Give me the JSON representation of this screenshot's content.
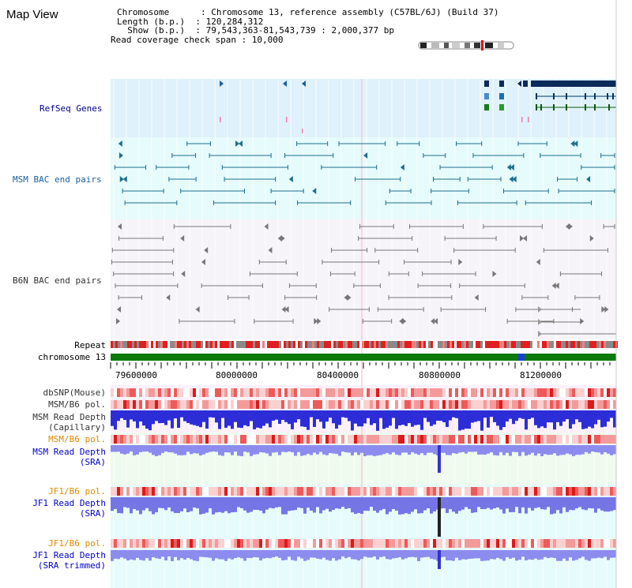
{
  "title": "Map View",
  "info": {
    "chromosome_label": "Chromosome      : Chromosome 13, reference assembly (C57BL/6J) (Build 37)",
    "length_label": "Length (b.p.)  : 120,284,312",
    "show_label": "  Show (b.p.)  : 79,543,363-81,543,739 : 2,000,377 bp",
    "coverage_label": "Read coverage check span : 10,000"
  },
  "tracks": {
    "refseq": "RefSeq Genes",
    "msm_bac": "MSM BAC end pairs",
    "b6n_bac": "B6N BAC end pairs",
    "repeat": "Repeat",
    "chromosome": "chromosome 13",
    "dbsnp": "dbSNP(Mouse)",
    "msm_b6_pol_1": "MSM/B6 pol.",
    "msm_read_depth_cap_1": "MSM Read Depth",
    "msm_read_depth_cap_2": "(Capillary)",
    "msm_b6_pol_2": "MSM/B6 pol.",
    "msm_read_depth_sra_1": "MSM Read Depth",
    "msm_read_depth_sra_2": "(SRA)",
    "jf1_b6_pol_1": "JF1/B6 pol.",
    "jf1_read_depth_sra_1": "JF1 Read Depth",
    "jf1_read_depth_sra_2": "(SRA)",
    "jf1_b6_pol_2": "JF1/B6 pol.",
    "jf1_read_depth_trim_1": "JF1 Read Depth",
    "jf1_read_depth_trim_2": "(SRA trimmed)"
  },
  "ruler": {
    "ticks": [
      "79600000",
      "80000000",
      "80400000",
      "80800000",
      "81200000"
    ]
  },
  "colors": {
    "refseq_bg": "#dff1fb",
    "msm_bg": "#e6fbfb",
    "b6n_bg": "#f5f3f8",
    "chrom_bar": "#0b7a0b",
    "depth_blue": "#3b3bdb",
    "depth_light": "#8888ee",
    "pol_red": "#e83030"
  }
}
